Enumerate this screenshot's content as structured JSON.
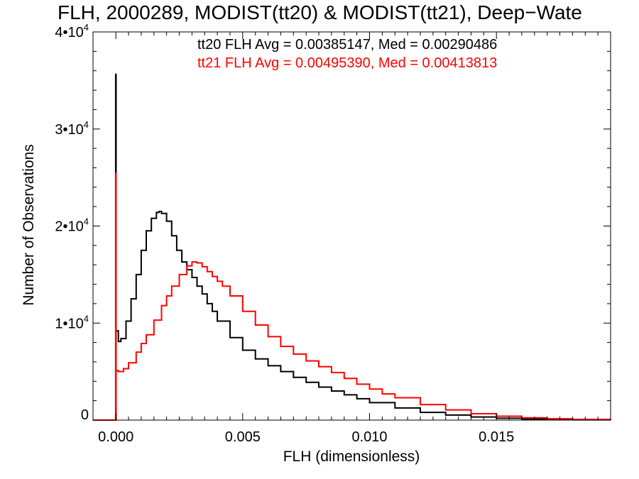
{
  "chart_data": {
    "type": "line",
    "title": "FLH, 2000289, MODIST(tt20) & MODIST(tt21), Deep−Wate",
    "xlabel": "FLH (dimensionless)",
    "ylabel": "Number of Observations",
    "xlim": [
      -0.0009,
      0.0195
    ],
    "ylim": [
      0,
      40000
    ],
    "x_ticks": [
      0.0,
      0.005,
      0.01,
      0.015
    ],
    "x_tick_labels": [
      "0.000",
      "0.005",
      "0.010",
      "0.015"
    ],
    "y_ticks": [
      0,
      10000,
      20000,
      30000,
      40000
    ],
    "y_tick_labels": [
      {
        "base": "0",
        "exp": ""
      },
      {
        "base": "1•10",
        "exp": "4"
      },
      {
        "base": "2•10",
        "exp": "4"
      },
      {
        "base": "3•10",
        "exp": "4"
      },
      {
        "base": "4•10",
        "exp": "4"
      }
    ],
    "style": "histogram-step",
    "annotations": [
      {
        "text": "tt20 FLH Avg = 0.00385147, Med = 0.00290486",
        "color": "#000000"
      },
      {
        "text": "tt21 FLH Avg = 0.00495390, Med = 0.00413813",
        "color": "#ff0000"
      }
    ],
    "series": [
      {
        "color": "#000000",
        "spike": {
          "x": 0.0,
          "y": 35700
        },
        "x": [
          -0.0009,
          -5e-05,
          0.0,
          0.0001,
          0.0002,
          0.0004,
          0.0006,
          0.0008,
          0.001,
          0.0012,
          0.0014,
          0.0016,
          0.0017,
          0.0018,
          0.002,
          0.0022,
          0.0024,
          0.0026,
          0.0028,
          0.003,
          0.0032,
          0.0034,
          0.0036,
          0.0038,
          0.004,
          0.0045,
          0.005,
          0.0055,
          0.006,
          0.0065,
          0.007,
          0.0075,
          0.008,
          0.0085,
          0.009,
          0.0095,
          0.01,
          0.011,
          0.012,
          0.013,
          0.014,
          0.015,
          0.016,
          0.017,
          0.018,
          0.0195
        ],
        "y": [
          0,
          0,
          9200,
          8100,
          8400,
          10200,
          12500,
          15000,
          17500,
          19500,
          20800,
          21400,
          21500,
          21300,
          20500,
          19000,
          17500,
          16300,
          15500,
          14700,
          13800,
          13000,
          12000,
          11200,
          10200,
          8500,
          7200,
          6300,
          5600,
          5000,
          4400,
          3900,
          3400,
          3000,
          2600,
          2200,
          1800,
          1250,
          800,
          520,
          320,
          190,
          110,
          60,
          30,
          10
        ]
      },
      {
        "color": "#ff0000",
        "spike": {
          "x": 0.0,
          "y": 25500
        },
        "x": [
          -0.0009,
          -5e-05,
          0.0,
          0.0001,
          0.0003,
          0.0005,
          0.0008,
          0.001,
          0.0012,
          0.0015,
          0.0018,
          0.002,
          0.0022,
          0.0025,
          0.0028,
          0.003,
          0.0032,
          0.0034,
          0.0036,
          0.0038,
          0.004,
          0.0042,
          0.0045,
          0.005,
          0.0055,
          0.006,
          0.0065,
          0.007,
          0.0075,
          0.008,
          0.0085,
          0.009,
          0.0095,
          0.01,
          0.0105,
          0.011,
          0.012,
          0.013,
          0.014,
          0.015,
          0.016,
          0.017,
          0.018,
          0.0195
        ],
        "y": [
          0,
          0,
          5100,
          5000,
          5300,
          5900,
          7000,
          7900,
          8800,
          10300,
          11800,
          12800,
          13800,
          15000,
          15900,
          16300,
          16200,
          15800,
          15300,
          14800,
          14300,
          13800,
          12800,
          11200,
          9800,
          8600,
          7600,
          6800,
          6100,
          5500,
          4900,
          4300,
          3700,
          3200,
          2700,
          2300,
          1600,
          1050,
          660,
          400,
          240,
          140,
          70,
          20
        ]
      }
    ]
  }
}
